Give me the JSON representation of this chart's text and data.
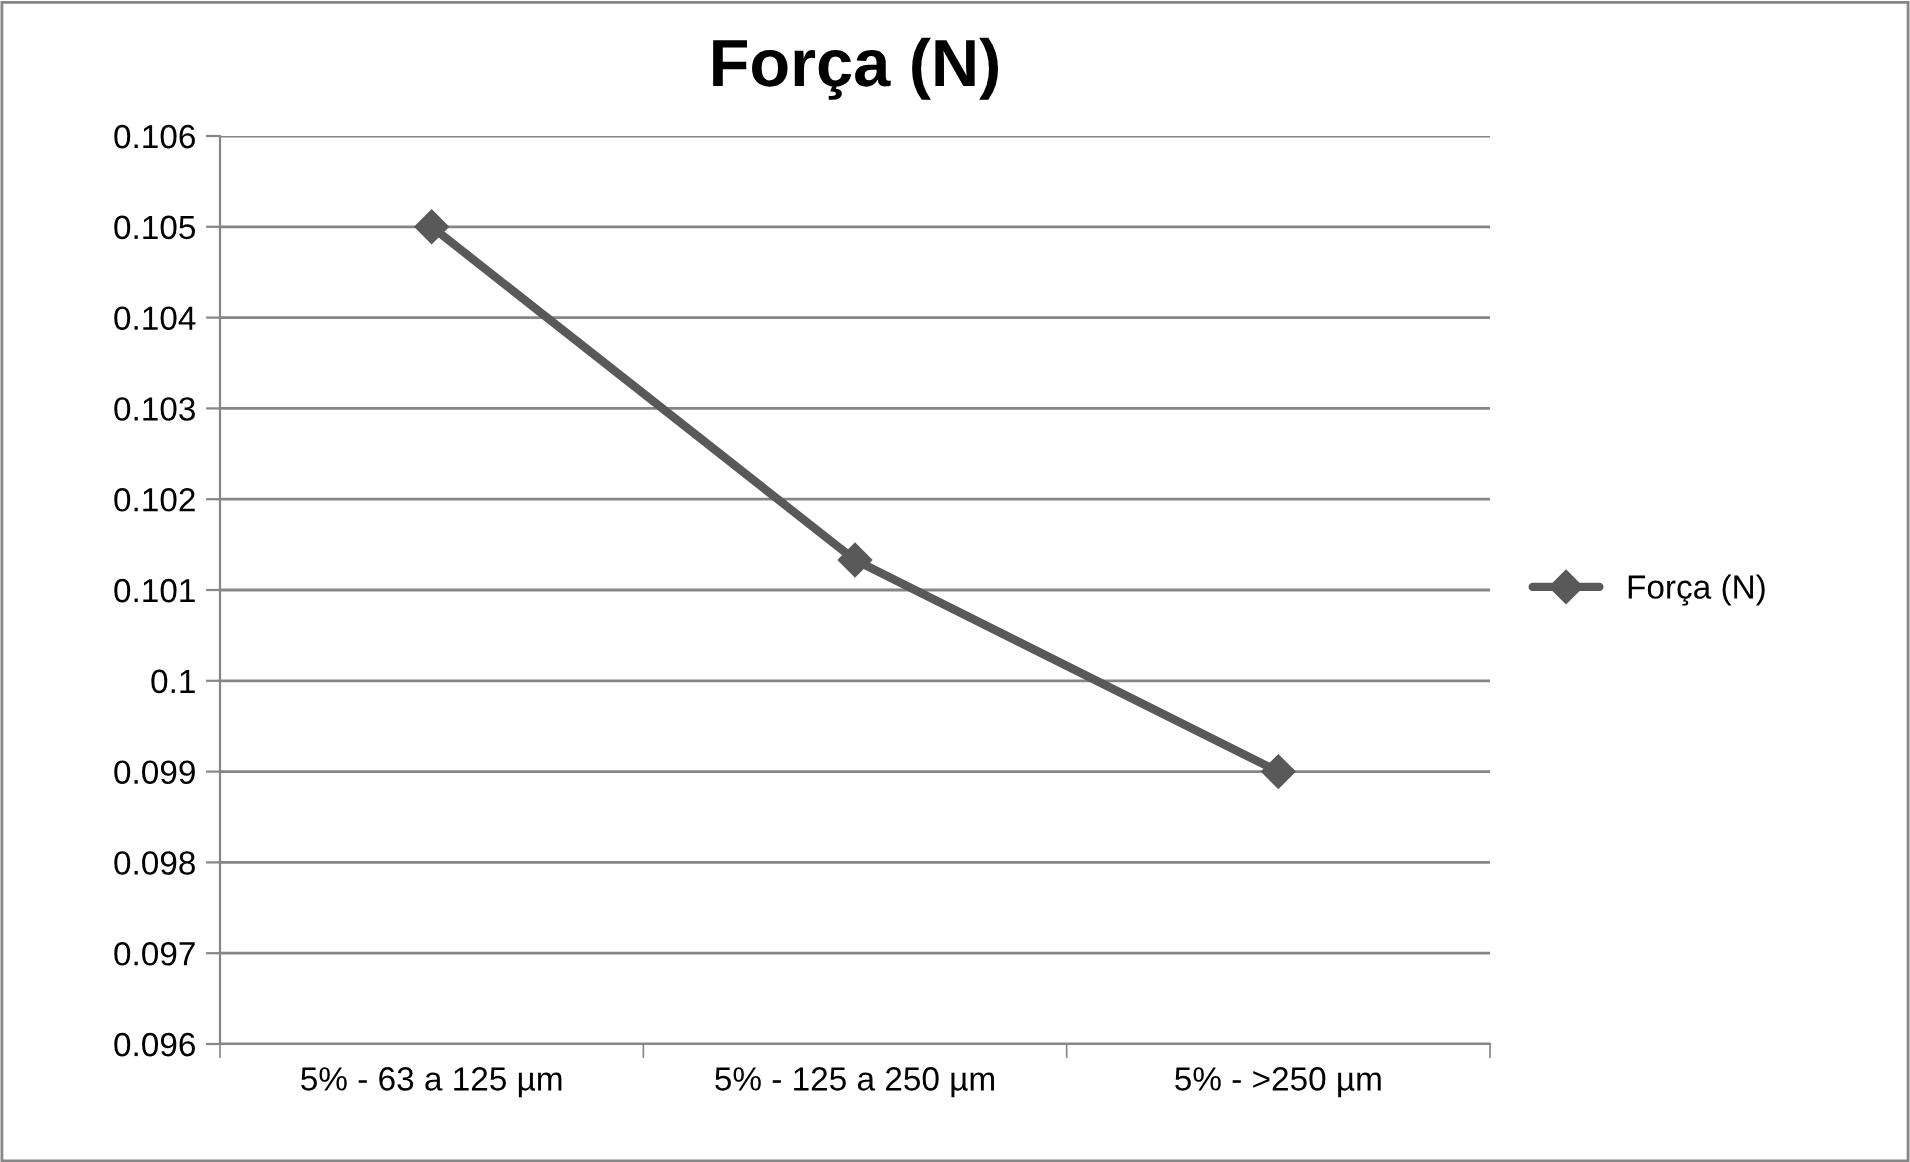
{
  "chart_data": {
    "type": "line",
    "title": "Força (N)",
    "categories": [
      "5% - 63 a 125 µm",
      "5% - 125 a 250 µm",
      "5% - >250 µm"
    ],
    "series": [
      {
        "name": "Força (N)",
        "color": "#595959",
        "values": [
          0.105,
          0.10133,
          0.099
        ]
      }
    ],
    "ylim": [
      0.096,
      0.106
    ],
    "yticks": [
      0.096,
      0.097,
      0.098,
      0.099,
      {
        "value": 0.1,
        "label": "0.1"
      },
      0.101,
      0.102,
      0.103,
      0.104,
      0.105,
      0.106
    ],
    "grid": "y",
    "legend": "right",
    "marker": "diamond",
    "line_style": "solid"
  }
}
